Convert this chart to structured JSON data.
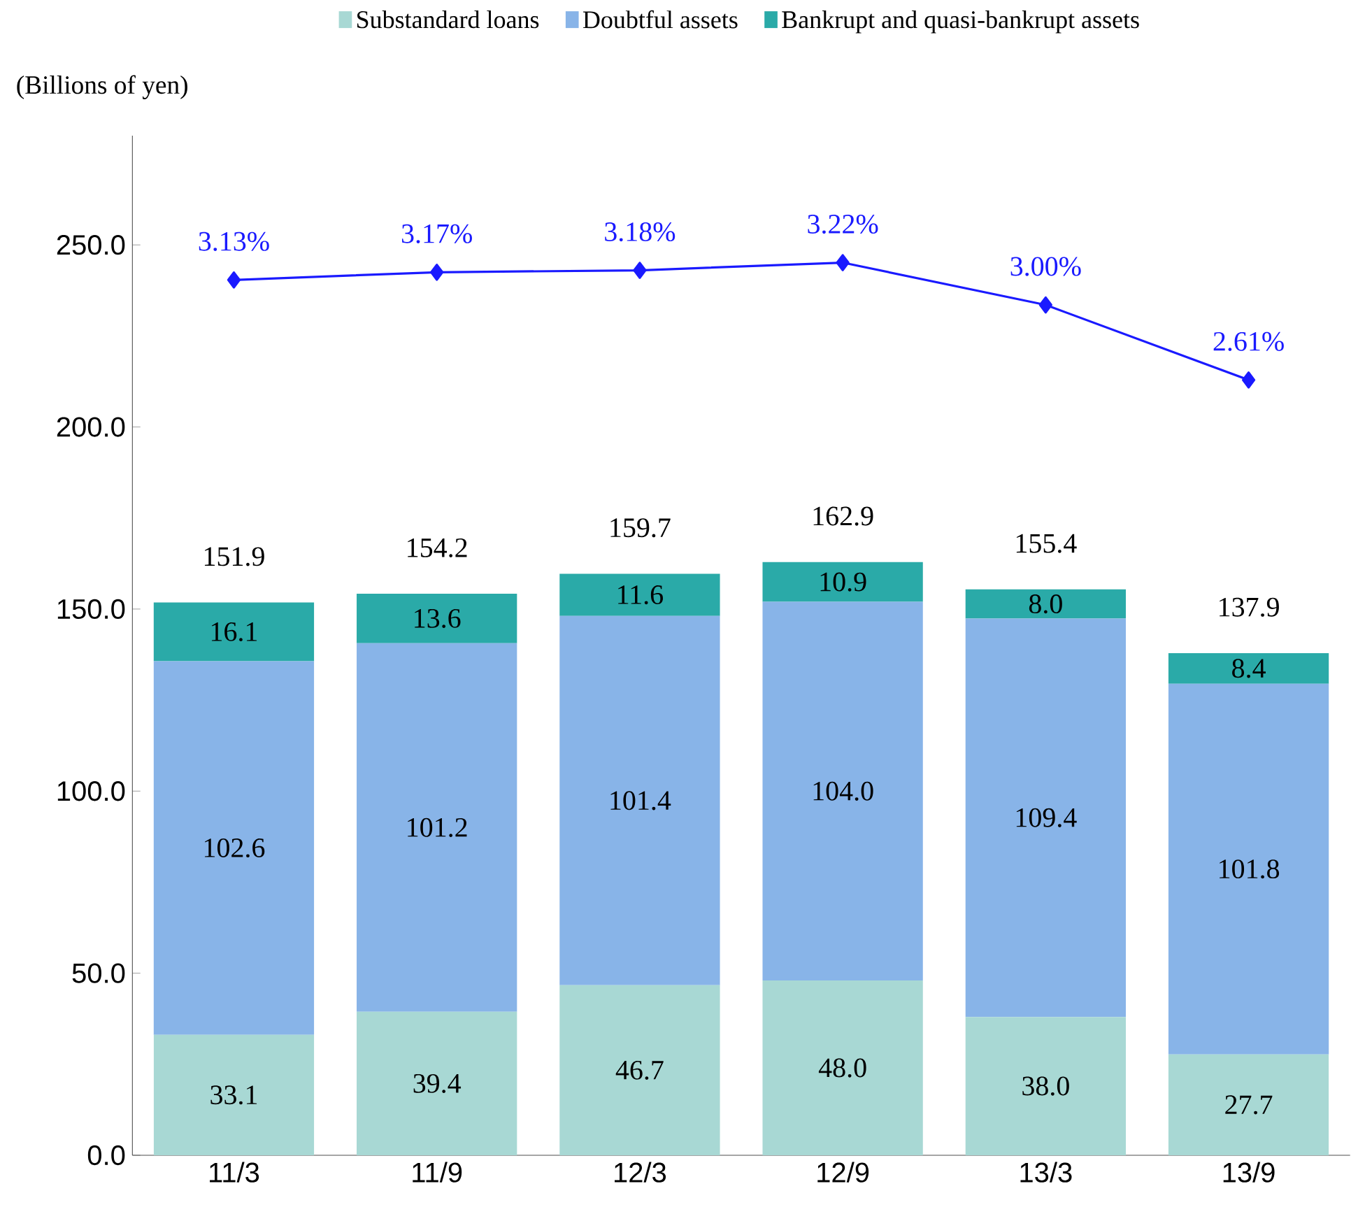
{
  "chart_data": {
    "type": "bar",
    "stacked": true,
    "ylabel": "(Billions of yen)",
    "categories": [
      "11/3",
      "11/9",
      "12/3",
      "12/9",
      "13/3",
      "13/9"
    ],
    "series": [
      {
        "name": "Substandard loans",
        "color": "#a8d8d4",
        "values": [
          33.1,
          39.4,
          46.7,
          48.0,
          38.0,
          27.7
        ],
        "value_labels": [
          "33.1",
          "39.4",
          "46.7",
          "48.0",
          "38.0",
          "27.7"
        ]
      },
      {
        "name": "Doubtful assets",
        "color": "#88b4e8",
        "values": [
          102.6,
          101.2,
          101.4,
          104.0,
          109.4,
          101.8
        ],
        "value_labels": [
          "102.6",
          "101.2",
          "101.4",
          "104.0",
          "109.4",
          "101.8"
        ]
      },
      {
        "name": "Bankrupt and quasi-bankrupt assets",
        "color": "#2aaaa8",
        "values": [
          16.1,
          13.6,
          11.6,
          10.9,
          8.0,
          8.4
        ],
        "value_labels": [
          "16.1",
          "13.6",
          "11.6",
          "10.9",
          "8.0",
          "8.4"
        ]
      },
      {
        "type": "line",
        "axis": "y2",
        "color": "#1a1aff",
        "marker": "diamond",
        "values": [
          3.13,
          3.17,
          3.18,
          3.22,
          3.0,
          2.61
        ],
        "value_labels": [
          "3.13%",
          "3.17%",
          "3.18%",
          "3.22%",
          "3.00%",
          "2.61%"
        ]
      }
    ],
    "totals": [
      "151.9",
      "154.2",
      "159.7",
      "162.9",
      "155.4",
      "137.9"
    ],
    "ylim": [
      0,
      280
    ],
    "yticks": [
      {
        "value": 0,
        "label": "0.0"
      },
      {
        "value": 50,
        "label": "50.0"
      },
      {
        "value": 100,
        "label": "100.0"
      },
      {
        "value": 150,
        "label": "150.0"
      },
      {
        "value": 200,
        "label": "200.0"
      },
      {
        "value": 250,
        "label": "250.0"
      }
    ],
    "y2lim": [
      -1.42,
      3.88
    ],
    "legend": "top"
  }
}
